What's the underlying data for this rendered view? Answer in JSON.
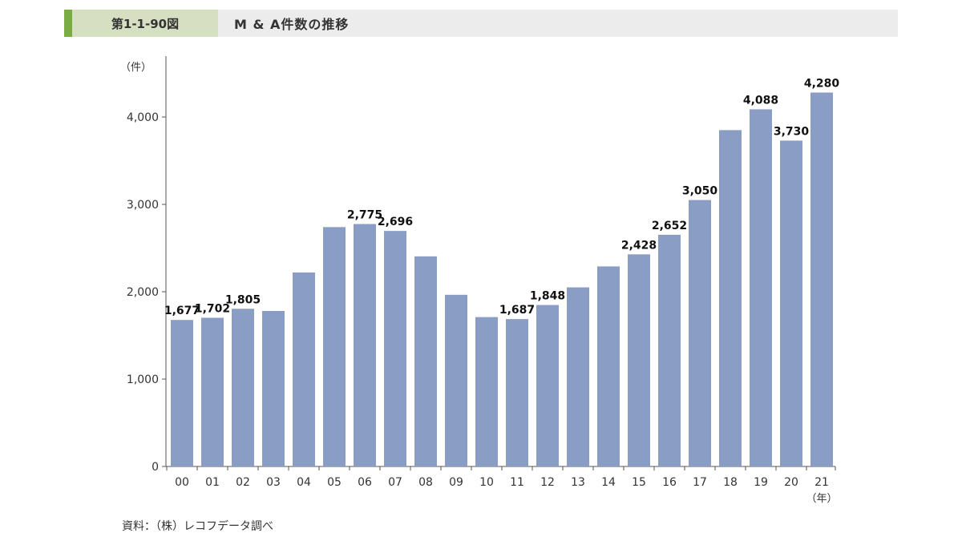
{
  "header": {
    "figure_number": "第1-1-90図",
    "title": "M & A件数の推移"
  },
  "source": "資料：（株）レコフデータ調べ",
  "colors": {
    "bar": "#8a9dc5",
    "accent": "#7aab45",
    "label_band": "#d6dfc2",
    "header_bg": "#ececec"
  },
  "chart_data": {
    "type": "bar",
    "title": "M & A件数の推移",
    "ylabel": "（件）",
    "xlabel": "（年）",
    "ylim": [
      0,
      4500
    ],
    "yticks": [
      0,
      1000,
      2000,
      3000,
      4000
    ],
    "ytick_labels": [
      "0",
      "1,000",
      "2,000",
      "3,000",
      "4,000"
    ],
    "grid": false,
    "categories": [
      "00",
      "01",
      "02",
      "03",
      "04",
      "05",
      "06",
      "07",
      "08",
      "09",
      "10",
      "11",
      "12",
      "13",
      "14",
      "15",
      "16",
      "17",
      "18",
      "19",
      "20",
      "21"
    ],
    "values": [
      1677,
      1702,
      1805,
      1780,
      2220,
      2740,
      2775,
      2696,
      2405,
      1965,
      1710,
      1687,
      1848,
      2050,
      2290,
      2428,
      2652,
      3050,
      3850,
      4088,
      3730,
      4280
    ],
    "data_labels": [
      "1,677",
      "1,702",
      "1,805",
      "",
      "",
      "",
      "2,775",
      "2,696",
      "",
      "",
      "",
      "1,687",
      "1,848",
      "",
      "",
      "2,428",
      "2,652",
      "3,050",
      "",
      "4,088",
      "3,730",
      "4,280"
    ]
  }
}
